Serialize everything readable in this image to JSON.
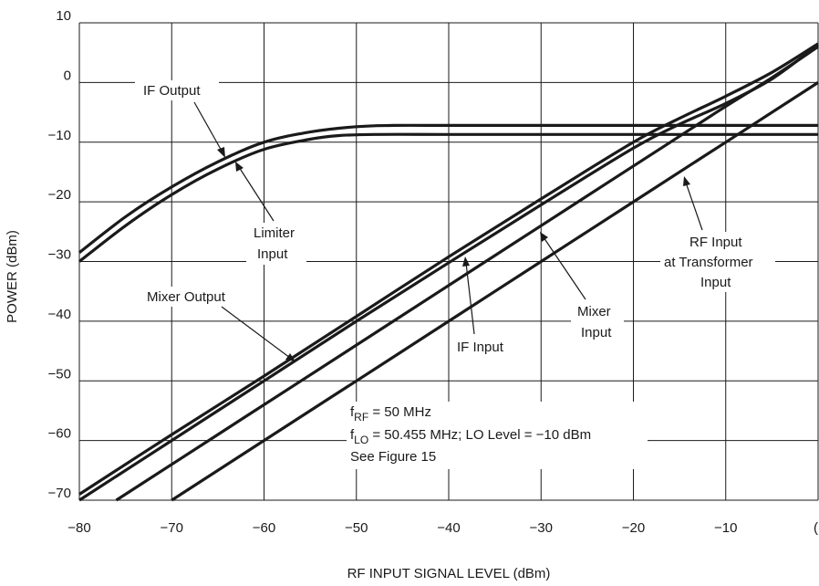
{
  "chart_data": {
    "type": "line",
    "xlabel": "RF INPUT SIGNAL LEVEL (dBm)",
    "ylabel": "POWER (dBm)",
    "xlim": [
      -80,
      0
    ],
    "ylim": [
      -70,
      10
    ],
    "xticks": [
      -80,
      -70,
      -60,
      -50,
      -40,
      -30,
      -20,
      -10,
      0
    ],
    "xtick_labels": [
      "−80",
      "−70",
      "−60",
      "−50",
      "−40",
      "−30",
      "−20",
      "−10",
      "("
    ],
    "yticks": [
      10,
      0,
      -10,
      -20,
      -30,
      -40,
      -50,
      -60,
      -70
    ],
    "ytick_labels": [
      "10",
      "0",
      "−10",
      "−20",
      "−30",
      "−40",
      "−50",
      "−60",
      "−70"
    ],
    "grid": true,
    "series": [
      {
        "key": "if_output",
        "x": [
          -80,
          -75,
          -70,
          -65,
          -60,
          -55,
          -50,
          -46,
          -40,
          -30,
          -20,
          -10,
          0
        ],
        "y": [
          -28.5,
          -22.5,
          -17.5,
          -13.3,
          -10.0,
          -8.3,
          -7.4,
          -7.2,
          -7.2,
          -7.2,
          -7.2,
          -7.2,
          -7.2
        ]
      },
      {
        "key": "limiter_input",
        "x": [
          -80,
          -75,
          -70,
          -65,
          -60,
          -55,
          -52,
          -48,
          -40,
          -30,
          -20,
          -10,
          0
        ],
        "y": [
          -30.0,
          -24.0,
          -18.8,
          -14.5,
          -11.2,
          -9.5,
          -8.9,
          -8.7,
          -8.7,
          -8.7,
          -8.7,
          -8.7,
          -8.7
        ]
      },
      {
        "key": "mixer_output",
        "x": [
          -80,
          -70,
          -60,
          -50,
          -40,
          -30,
          -20,
          -15,
          -10,
          -5,
          0
        ],
        "y": [
          -69.0,
          -59.0,
          -49.2,
          -39.2,
          -29.2,
          -19.5,
          -10.0,
          -6.0,
          -2.3,
          1.7,
          6.5
        ]
      },
      {
        "key": "if_input",
        "x": [
          -80,
          -70,
          -60,
          -50,
          -40,
          -30,
          -20,
          -15,
          -10,
          -5,
          0
        ],
        "y": [
          -70.0,
          -60.0,
          -50.0,
          -40.0,
          -30.2,
          -20.5,
          -11.0,
          -7.0,
          -3.5,
          0.6,
          6.3
        ]
      },
      {
        "key": "mixer_input",
        "x": [
          -76,
          -66,
          -56,
          -46,
          -36,
          -26,
          -16,
          -10,
          -5,
          0
        ],
        "y": [
          -70.0,
          -60.0,
          -50.0,
          -40.0,
          -30.0,
          -20.0,
          -10.0,
          -4.0,
          0.8,
          6.0
        ]
      },
      {
        "key": "rf_input_at_transformer",
        "x": [
          -70,
          -60,
          -50,
          -40,
          -30,
          -20,
          -10,
          0
        ],
        "y": [
          -70.0,
          -60.0,
          -50.0,
          -40.0,
          -30.0,
          -20.0,
          -10.0,
          0.0
        ]
      }
    ],
    "annotations": {
      "if_output": "IF Output",
      "limiter_input": [
        "Limiter",
        "Input"
      ],
      "mixer_output": "Mixer Output",
      "if_input": "IF Input",
      "mixer_input": [
        "Mixer",
        "Input"
      ],
      "rf_input": [
        "RF Input",
        "at Transformer",
        "Input"
      ],
      "conditions": {
        "line1_main": "f",
        "line1_sub": "RF",
        "line1_rest": " = 50 MHz",
        "line2_main": "f",
        "line2_sub": "LO",
        "line2_rest": " = 50.455 MHz; LO Level = −10 dBm",
        "line3": "See Figure 15"
      }
    }
  }
}
